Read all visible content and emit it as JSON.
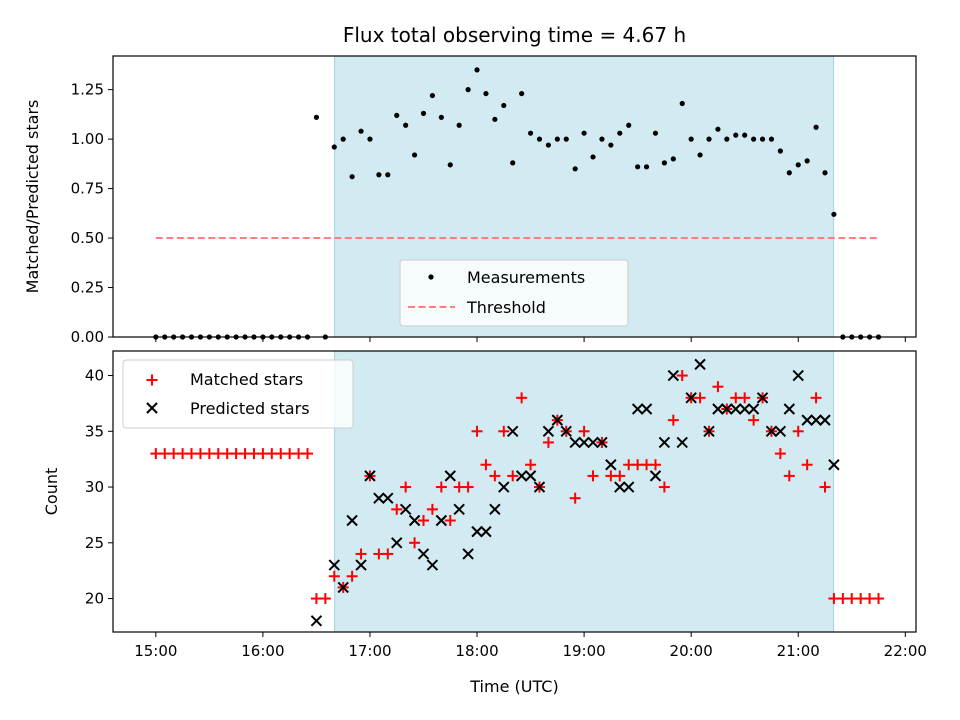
{
  "chart_data": [
    {
      "type": "scatter",
      "title": "Flux total observing time = 4.67 h",
      "ylabel": "Matched/Predicted stars",
      "xlabel": "",
      "ylim": [
        0,
        1.42
      ],
      "yticks": [
        0,
        0.25,
        0.5,
        0.75,
        1.0,
        1.25
      ],
      "ytick_labels": [
        "0.00",
        "0.25",
        "0.50",
        "0.75",
        "1.00",
        "1.25"
      ],
      "xlim": [
        14.6,
        22.1
      ],
      "shaded_span": [
        16.67,
        21.33
      ],
      "shade_color": "#add8e6",
      "legend": {
        "position": "lower center",
        "entries": [
          "Measurements",
          "Threshold"
        ]
      },
      "series": [
        {
          "name": "Measurements",
          "marker": "dot",
          "color": "#000000",
          "x": [
            15.0,
            15.0833,
            15.1667,
            15.25,
            15.3333,
            15.4167,
            15.5,
            15.5833,
            15.6667,
            15.75,
            15.8333,
            15.9167,
            16.0,
            16.0833,
            16.1667,
            16.25,
            16.3333,
            16.4167,
            16.5,
            16.5833,
            16.6667,
            16.75,
            16.8333,
            16.9167,
            17.0,
            17.0833,
            17.1667,
            17.25,
            17.3333,
            17.4167,
            17.5,
            17.5833,
            17.6667,
            17.75,
            17.8333,
            17.9167,
            18.0,
            18.0833,
            18.1667,
            18.25,
            18.3333,
            18.4167,
            18.5,
            18.5833,
            18.6667,
            18.75,
            18.8333,
            18.9167,
            19.0,
            19.0833,
            19.1667,
            19.25,
            19.3333,
            19.4167,
            19.5,
            19.5833,
            19.6667,
            19.75,
            19.8333,
            19.9167,
            20.0,
            20.0833,
            20.1667,
            20.25,
            20.3333,
            20.4167,
            20.5,
            20.5833,
            20.6667,
            20.75,
            20.8333,
            20.9167,
            21.0,
            21.0833,
            21.1667,
            21.25,
            21.3333,
            21.4167,
            21.5,
            21.5833,
            21.6667,
            21.75
          ],
          "y": [
            0,
            0,
            0,
            0,
            0,
            0,
            0,
            0,
            0,
            0,
            0,
            0,
            0,
            0,
            0,
            0,
            0,
            0,
            1.11,
            0,
            0.96,
            1.0,
            0.81,
            1.04,
            1.0,
            0.82,
            0.82,
            1.12,
            1.07,
            0.92,
            1.13,
            1.22,
            1.11,
            0.87,
            1.07,
            1.25,
            1.35,
            1.23,
            1.1,
            1.17,
            0.88,
            1.23,
            1.03,
            1.0,
            0.97,
            1.0,
            1.0,
            0.85,
            1.03,
            0.91,
            1.0,
            0.97,
            1.03,
            1.07,
            0.86,
            0.86,
            1.03,
            0.88,
            0.9,
            1.18,
            1.0,
            0.92,
            1.0,
            1.05,
            1.0,
            1.02,
            1.02,
            1.0,
            1.0,
            1.0,
            0.94,
            0.83,
            0.87,
            0.89,
            1.06,
            0.83,
            0.62,
            0,
            0,
            0,
            0,
            0
          ]
        },
        {
          "name": "Threshold",
          "type": "dashed-line",
          "color": "#ff7f7f",
          "x": [
            15.0,
            21.75
          ],
          "y": [
            0.5,
            0.5
          ]
        }
      ]
    },
    {
      "type": "scatter",
      "title": "",
      "ylabel": "Count",
      "xlabel": "Time (UTC)",
      "ylim": [
        17,
        42.2
      ],
      "yticks": [
        20,
        25,
        30,
        35,
        40
      ],
      "ytick_labels": [
        "20",
        "25",
        "30",
        "35",
        "40"
      ],
      "xlim": [
        14.6,
        22.1
      ],
      "xticks": [
        15,
        16,
        17,
        18,
        19,
        20,
        21,
        22
      ],
      "xtick_labels": [
        "15:00",
        "16:00",
        "17:00",
        "18:00",
        "19:00",
        "20:00",
        "21:00",
        "22:00"
      ],
      "shaded_span": [
        16.67,
        21.33
      ],
      "shade_color": "#add8e6",
      "legend": {
        "position": "upper left",
        "entries": [
          "Matched stars",
          "Predicted stars"
        ]
      },
      "series": [
        {
          "name": "Matched stars",
          "marker": "plus",
          "color": "#ff0000",
          "x": [
            15.0,
            15.0833,
            15.1667,
            15.25,
            15.3333,
            15.4167,
            15.5,
            15.5833,
            15.6667,
            15.75,
            15.8333,
            15.9167,
            16.0,
            16.0833,
            16.1667,
            16.25,
            16.3333,
            16.4167,
            16.5,
            16.5833,
            16.6667,
            16.75,
            16.8333,
            16.9167,
            17.0,
            17.0833,
            17.1667,
            17.25,
            17.3333,
            17.4167,
            17.5,
            17.5833,
            17.6667,
            17.75,
            17.8333,
            17.9167,
            18.0,
            18.0833,
            18.1667,
            18.25,
            18.3333,
            18.4167,
            18.5,
            18.5833,
            18.6667,
            18.75,
            18.8333,
            18.9167,
            19.0,
            19.0833,
            19.1667,
            19.25,
            19.3333,
            19.4167,
            19.5,
            19.5833,
            19.6667,
            19.75,
            19.8333,
            19.9167,
            20.0,
            20.0833,
            20.1667,
            20.25,
            20.3333,
            20.4167,
            20.5,
            20.5833,
            20.6667,
            20.75,
            20.8333,
            20.9167,
            21.0,
            21.0833,
            21.1667,
            21.25,
            21.3333,
            21.4167,
            21.5,
            21.5833,
            21.6667,
            21.75
          ],
          "y": [
            33,
            33,
            33,
            33,
            33,
            33,
            33,
            33,
            33,
            33,
            33,
            33,
            33,
            33,
            33,
            33,
            33,
            33,
            20,
            20,
            22,
            21,
            22,
            24,
            31,
            24,
            24,
            28,
            30,
            25,
            27,
            28,
            30,
            27,
            30,
            30,
            35,
            32,
            31,
            35,
            31,
            38,
            32,
            30,
            34,
            36,
            35,
            29,
            35,
            31,
            34,
            31,
            31,
            32,
            32,
            32,
            32,
            30,
            36,
            40,
            38,
            38,
            35,
            39,
            37,
            38,
            38,
            36,
            38,
            35,
            33,
            31,
            35,
            32,
            38,
            30,
            20,
            20,
            20,
            20,
            20,
            20
          ]
        },
        {
          "name": "Predicted stars",
          "marker": "x",
          "color": "#000000",
          "x": [
            16.5,
            16.6667,
            16.75,
            16.8333,
            16.9167,
            17.0,
            17.0833,
            17.1667,
            17.25,
            17.3333,
            17.4167,
            17.5,
            17.5833,
            17.6667,
            17.75,
            17.8333,
            17.9167,
            18.0,
            18.0833,
            18.1667,
            18.25,
            18.3333,
            18.4167,
            18.5,
            18.5833,
            18.6667,
            18.75,
            18.8333,
            18.9167,
            19.0,
            19.0833,
            19.1667,
            19.25,
            19.3333,
            19.4167,
            19.5,
            19.5833,
            19.6667,
            19.75,
            19.8333,
            19.9167,
            20.0,
            20.0833,
            20.1667,
            20.25,
            20.3333,
            20.4167,
            20.5,
            20.5833,
            20.6667,
            20.75,
            20.8333,
            20.9167,
            21.0,
            21.0833,
            21.1667,
            21.25,
            21.3333
          ],
          "y": [
            18,
            23,
            21,
            27,
            23,
            31,
            29,
            29,
            25,
            28,
            27,
            24,
            23,
            27,
            31,
            28,
            24,
            26,
            26,
            28,
            30,
            35,
            31,
            31,
            30,
            35,
            36,
            35,
            34,
            34,
            34,
            34,
            32,
            30,
            30,
            37,
            37,
            31,
            34,
            40,
            34,
            38,
            41,
            35,
            37,
            37,
            37,
            37,
            37,
            38,
            35,
            35,
            37,
            40,
            36,
            36,
            36,
            32
          ]
        }
      ]
    }
  ]
}
